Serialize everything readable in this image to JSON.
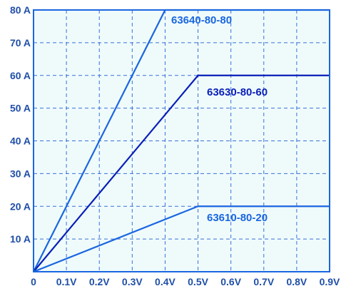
{
  "chart_data": {
    "type": "line",
    "title": "",
    "xlabel": "",
    "ylabel": "",
    "xlim": [
      0,
      0.9
    ],
    "ylim": [
      0,
      80
    ],
    "grid": true,
    "x_ticks": [
      "0",
      "0.1V",
      "0.2V",
      "0.3V",
      "0.4V",
      "0.5V",
      "0.6V",
      "0.7V",
      "0.8V",
      "0.9V"
    ],
    "y_ticks": [
      "10 A",
      "20 A",
      "30 A",
      "40 A",
      "50 A",
      "60 A",
      "70 A",
      "80 A"
    ],
    "series": [
      {
        "name": "63640-80-80",
        "color": "#1a66e0",
        "x": [
          0,
          0.4,
          0.9
        ],
        "y": [
          0,
          80,
          80
        ]
      },
      {
        "name": "63630-80-60",
        "color": "#0a1fb8",
        "x": [
          0,
          0.5,
          0.9
        ],
        "y": [
          0,
          60,
          60
        ]
      },
      {
        "name": "63610-80-20",
        "color": "#1a66e0",
        "x": [
          0,
          0.5,
          0.9
        ],
        "y": [
          0,
          20,
          20
        ]
      }
    ]
  },
  "colors": {
    "plot_background": "#effbfb",
    "grid": "#3a6fd8",
    "frame": "#1a66e0",
    "tick_text": "#1f4fa8"
  }
}
